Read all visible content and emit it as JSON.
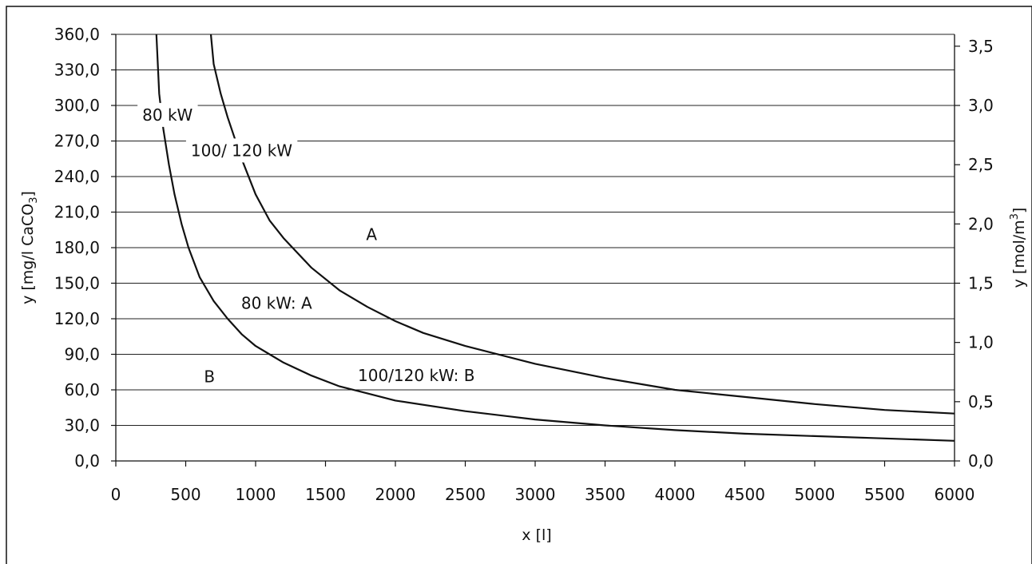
{
  "chart_data": {
    "type": "line",
    "title": "",
    "xlabel": "x [l]",
    "ylabel_left": "y [mg/l CaCO",
    "ylabel_left_sub": "3",
    "ylabel_left_end": "]",
    "ylabel_right": "y [mol/m",
    "ylabel_right_sup": "3",
    "ylabel_right_end": "]",
    "xlim": [
      0,
      6000
    ],
    "ylim_left": [
      0,
      360
    ],
    "ylim_right": [
      0,
      3.6
    ],
    "x_ticks": [
      "0",
      "500",
      "1000",
      "1500",
      "2000",
      "2500",
      "3000",
      "3500",
      "4000",
      "4500",
      "5000",
      "5500",
      "6000"
    ],
    "y_left_ticks": [
      "0,0",
      "30,0",
      "60,0",
      "90,0",
      "120,0",
      "150,0",
      "180,0",
      "210,0",
      "240,0",
      "270,0",
      "300,0",
      "330,0",
      "360,0"
    ],
    "y_left_values": [
      0,
      30,
      60,
      90,
      120,
      150,
      180,
      210,
      240,
      270,
      300,
      330,
      360
    ],
    "y_right_ticks": [
      "0,0",
      "0,5",
      "1,0",
      "1,5",
      "2,0",
      "2,5",
      "3,0",
      "3,5"
    ],
    "y_right_values": [
      0,
      0.5,
      1.0,
      1.5,
      2.0,
      2.5,
      3.0,
      3.5
    ],
    "grid": true,
    "series": [
      {
        "name": "80 kW",
        "x": [
          290,
          310,
          340,
          380,
          420,
          470,
          520,
          600,
          700,
          800,
          900,
          1000,
          1100,
          1200,
          1400,
          1600,
          1800,
          2000,
          2500,
          3000,
          3500,
          4000,
          4500,
          5000,
          5500,
          6000
        ],
        "y": [
          360,
          310,
          280,
          250,
          225,
          200,
          180,
          155,
          135,
          120,
          107,
          97,
          90,
          83,
          72,
          63,
          57,
          51,
          42,
          35,
          30,
          26,
          23,
          21,
          19,
          17
        ]
      },
      {
        "name": "100/ 120 kW",
        "x": [
          680,
          700,
          750,
          800,
          900,
          1000,
          1100,
          1200,
          1400,
          1600,
          1800,
          2000,
          2200,
          2500,
          3000,
          3500,
          4000,
          4500,
          5000,
          5500,
          6000
        ],
        "y": [
          360,
          335,
          310,
          290,
          255,
          225,
          203,
          188,
          163,
          144,
          130,
          118,
          108,
          97,
          82,
          70,
          60,
          54,
          48,
          43,
          40
        ]
      }
    ],
    "annotations": [
      {
        "text": "80 kW",
        "x": 370,
        "y": 292
      },
      {
        "text": "100/ 120 kW",
        "x": 900,
        "y": 262
      },
      {
        "text": "A",
        "x": 1830,
        "y": 191
      },
      {
        "text": "80 kW: A",
        "x": 1150,
        "y": 133
      },
      {
        "text": "B",
        "x": 670,
        "y": 71
      },
      {
        "text": "100/120 kW: B",
        "x": 2150,
        "y": 72
      }
    ]
  }
}
